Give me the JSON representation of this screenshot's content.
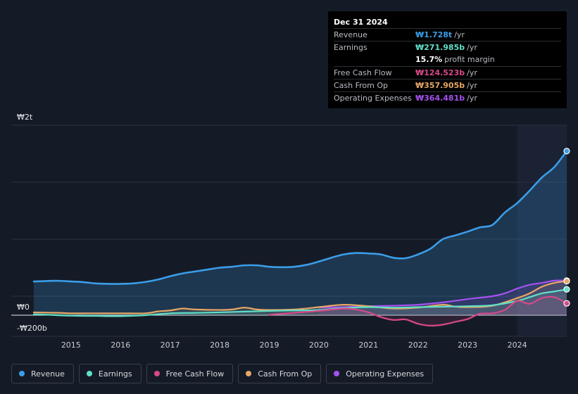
{
  "tooltip": {
    "date": "Dec 31 2024",
    "rows": [
      {
        "label": "Revenue",
        "value": "₩1.728t",
        "unit": "/yr",
        "color": "#3b9de8"
      },
      {
        "label": "Earnings",
        "value": "₩271.985b",
        "unit": "/yr",
        "color": "#5fe0c8"
      },
      {
        "label": "",
        "value": "15.7%",
        "unit": "profit margin",
        "color": "#ffffff"
      },
      {
        "label": "Free Cash Flow",
        "value": "₩124.523b",
        "unit": "/yr",
        "color": "#d9488a"
      },
      {
        "label": "Cash From Op",
        "value": "₩357.905b",
        "unit": "/yr",
        "color": "#e8a866"
      },
      {
        "label": "Operating Expenses",
        "value": "₩364.481b",
        "unit": "/yr",
        "color": "#a452ee"
      }
    ]
  },
  "legend": [
    {
      "label": "Revenue",
      "color": "#3b9de8"
    },
    {
      "label": "Earnings",
      "color": "#5fe0c8"
    },
    {
      "label": "Free Cash Flow",
      "color": "#d9488a"
    },
    {
      "label": "Cash From Op",
      "color": "#e8a866"
    },
    {
      "label": "Operating Expenses",
      "color": "#a452ee"
    }
  ],
  "chart_data": {
    "type": "line",
    "title": "",
    "ytick_labels": {
      "top": "₩2t",
      "zero": "₩0",
      "bottom": "-₩200b"
    },
    "ylim": [
      -200,
      2000
    ],
    "xlim": [
      2014.25,
      2025.0
    ],
    "xticks": [
      "2015",
      "2016",
      "2017",
      "2018",
      "2019",
      "2020",
      "2021",
      "2022",
      "2023",
      "2024"
    ],
    "forecast_start": 2024.0,
    "series": [
      {
        "name": "Revenue",
        "color": "#3b9de8",
        "x": [
          2014.25,
          2014.5,
          2014.75,
          2015.0,
          2015.25,
          2015.5,
          2015.75,
          2016.0,
          2016.25,
          2016.5,
          2016.75,
          2017.0,
          2017.25,
          2017.5,
          2017.75,
          2018.0,
          2018.25,
          2018.5,
          2018.75,
          2019.0,
          2019.25,
          2019.5,
          2019.75,
          2020.0,
          2020.25,
          2020.5,
          2020.75,
          2021.0,
          2021.25,
          2021.5,
          2021.75,
          2022.0,
          2022.25,
          2022.5,
          2022.75,
          2023.0,
          2023.25,
          2023.5,
          2023.75,
          2024.0,
          2024.25,
          2024.5,
          2024.75,
          2025.0
        ],
        "values": [
          355,
          360,
          362,
          355,
          348,
          335,
          330,
          330,
          335,
          350,
          375,
          410,
          440,
          460,
          480,
          500,
          510,
          525,
          525,
          510,
          505,
          510,
          530,
          565,
          605,
          640,
          655,
          650,
          640,
          605,
          600,
          640,
          700,
          800,
          840,
          880,
          925,
          950,
          1080,
          1180,
          1310,
          1450,
          1560,
          1728
        ]
      },
      {
        "name": "Earnings",
        "color": "#5fe0c8",
        "x": [
          2014.25,
          2014.5,
          2015.0,
          2015.5,
          2016.0,
          2016.5,
          2017.0,
          2017.5,
          2018.0,
          2018.5,
          2019.0,
          2019.5,
          2020.0,
          2020.5,
          2021.0,
          2021.5,
          2022.0,
          2022.5,
          2023.0,
          2023.5,
          2024.0,
          2024.25,
          2024.5,
          2024.75,
          2025.0
        ],
        "values": [
          10,
          5,
          -5,
          -8,
          -10,
          0,
          20,
          25,
          30,
          38,
          45,
          50,
          55,
          75,
          85,
          80,
          85,
          90,
          95,
          105,
          150,
          190,
          230,
          250,
          271.985
        ]
      },
      {
        "name": "Free Cash Flow",
        "color": "#d9488a",
        "x": [
          2019.0,
          2019.5,
          2020.0,
          2020.5,
          2020.75,
          2021.0,
          2021.25,
          2021.5,
          2021.75,
          2022.0,
          2022.25,
          2022.5,
          2022.75,
          2023.0,
          2023.25,
          2023.5,
          2023.75,
          2024.0,
          2024.25,
          2024.5,
          2024.75,
          2025.0
        ],
        "values": [
          5,
          25,
          45,
          70,
          60,
          30,
          -20,
          -50,
          -45,
          -90,
          -110,
          -100,
          -70,
          -40,
          15,
          20,
          55,
          150,
          120,
          180,
          190,
          124.523
        ]
      },
      {
        "name": "Cash From Op",
        "color": "#e8a866",
        "x": [
          2014.25,
          2014.75,
          2015.0,
          2015.5,
          2016.0,
          2016.5,
          2016.75,
          2017.0,
          2017.25,
          2017.5,
          2018.0,
          2018.25,
          2018.5,
          2018.75,
          2019.0,
          2019.5,
          2020.0,
          2020.25,
          2020.5,
          2020.75,
          2021.0,
          2021.5,
          2022.0,
          2022.5,
          2022.75,
          2023.0,
          2023.5,
          2024.0,
          2024.25,
          2024.5,
          2024.75,
          2025.0
        ],
        "values": [
          30,
          25,
          20,
          20,
          20,
          20,
          40,
          50,
          70,
          60,
          55,
          60,
          80,
          60,
          55,
          60,
          85,
          100,
          110,
          105,
          95,
          70,
          80,
          110,
          90,
          85,
          100,
          180,
          230,
          300,
          340,
          357.905
        ]
      },
      {
        "name": "Operating Expenses",
        "color": "#a452ee",
        "x": [
          2020.0,
          2020.5,
          2021.0,
          2021.5,
          2022.0,
          2022.5,
          2023.0,
          2023.5,
          2023.75,
          2024.0,
          2024.25,
          2024.5,
          2024.75,
          2025.0
        ],
        "values": [
          80,
          85,
          95,
          100,
          110,
          135,
          170,
          200,
          230,
          280,
          320,
          340,
          364,
          364.481
        ]
      }
    ]
  }
}
